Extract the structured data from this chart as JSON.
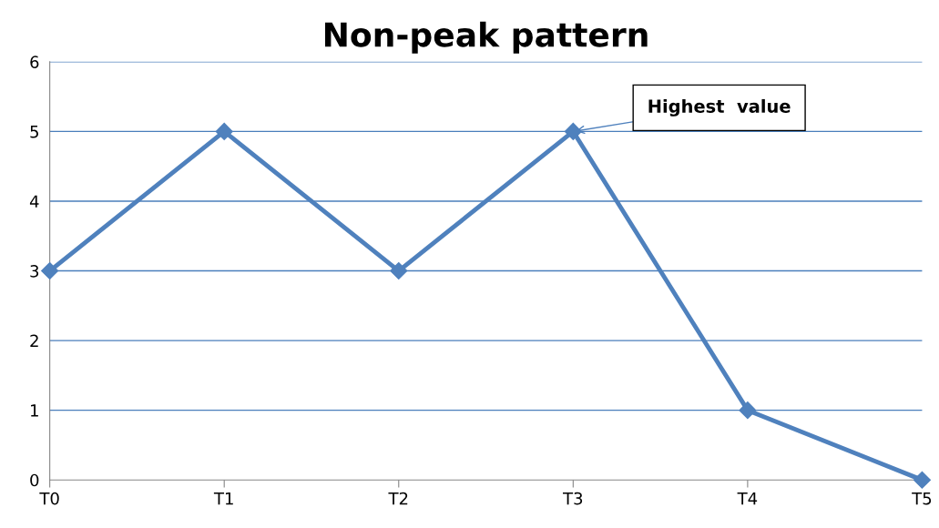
{
  "chart_data": {
    "type": "line",
    "title": "Non-peak pattern",
    "categories": [
      "T0",
      "T1",
      "T2",
      "T3",
      "T4",
      "T5"
    ],
    "values": [
      3,
      5,
      3,
      5,
      1,
      0
    ],
    "color": "#4f81bd",
    "marker": "diamond",
    "line_style": "solid",
    "ylim": [
      0,
      6
    ],
    "yticks": [
      0,
      1,
      2,
      3,
      4,
      5,
      6
    ],
    "grid": "y",
    "legend": false,
    "annotations": [
      {
        "text": "Highest  value",
        "x": "T3",
        "y": 5
      }
    ]
  }
}
